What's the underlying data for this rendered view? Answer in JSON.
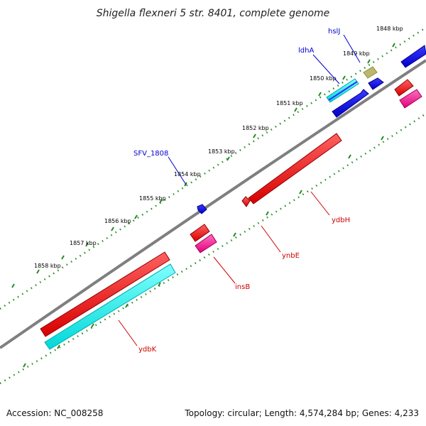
{
  "title": "Shigella flexneri 5 str. 8401, complete genome",
  "scale_labels": [
    "1848 kbp",
    "1849 kbp",
    "1850 kbp",
    "1851 kbp",
    "1852 kbp",
    "1853 kbp",
    "1854 kbp",
    "1855 kbp",
    "1856 kbp",
    "1857 kbp",
    "1858 kbp"
  ],
  "gene_labels": {
    "hslJ": "hslJ",
    "ldhA": "ldhA",
    "SFV_1808": "SFV_1808",
    "ydbH": "ydbH",
    "ynbE": "ynbE",
    "insB": "insB",
    "ydbK": "ydbK"
  },
  "footer": {
    "accession": "Accession: NC_008258",
    "topology": "Topology: circular; Length: 4,574,284 bp; Genes: 4,233"
  },
  "colors": {
    "backbone": "#7f7f7f",
    "scale_ticks": "#228b22",
    "forward_cds": "#0000ff",
    "reverse_cds": "#ff0000",
    "cyan_feature": "#00ffff",
    "pink_feature": "#ff3399",
    "khaki_feature": "#bdb76b",
    "forward_label": "#0000cc",
    "reverse_label": "#cc0000"
  }
}
